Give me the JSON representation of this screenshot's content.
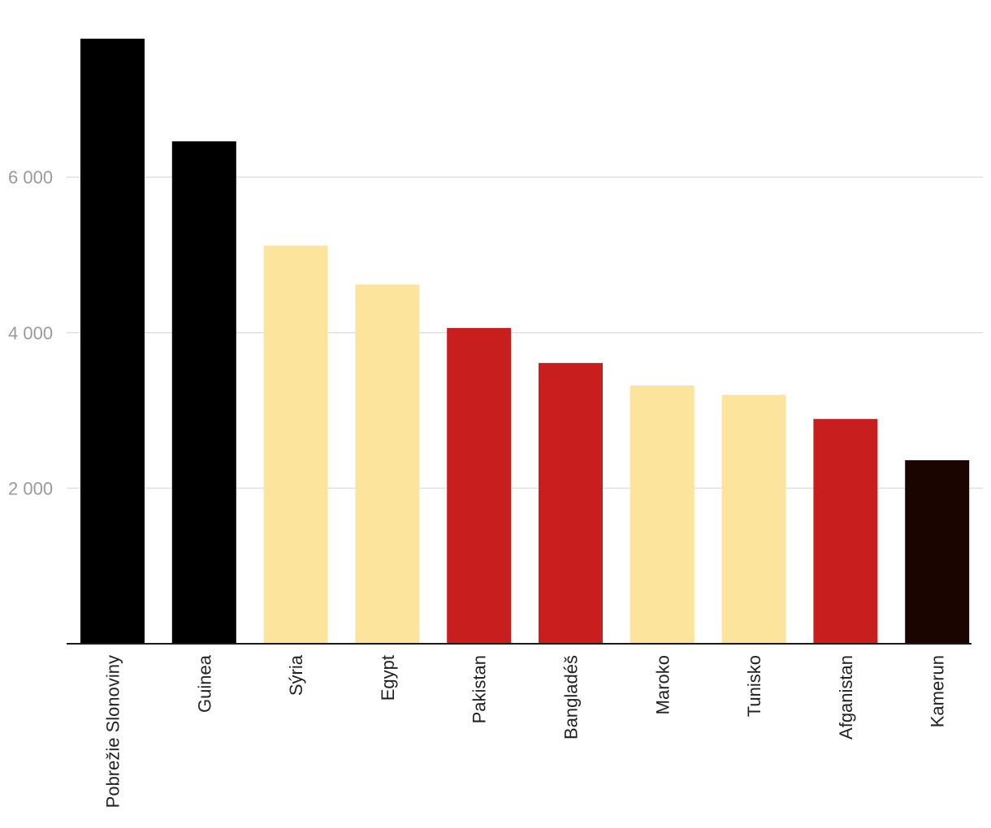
{
  "chart_data": {
    "type": "bar",
    "title": "",
    "xlabel": "",
    "ylabel": "",
    "categories": [
      "Pobrežie Slonoviny",
      "Guinea",
      "Sýria",
      "Egypt",
      "Pakistan",
      "Bangladéš",
      "Maroko",
      "Tunisko",
      "Afganistan",
      "Kamerun"
    ],
    "values": [
      7780,
      6460,
      5120,
      4620,
      4060,
      3610,
      3320,
      3200,
      2890,
      2360
    ],
    "colors": [
      "#000000",
      "#000000",
      "#fde49c",
      "#fde49c",
      "#c81e1e",
      "#c81e1e",
      "#fde49c",
      "#fde49c",
      "#c81e1e",
      "#1a0500"
    ],
    "ylim": [
      0,
      8000
    ],
    "yticks": [
      2000,
      4000,
      6000
    ],
    "ytick_labels": [
      "2 000",
      "4 000",
      "6 000"
    ],
    "grid": true,
    "legend": "none"
  }
}
